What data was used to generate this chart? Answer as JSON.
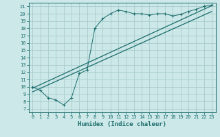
{
  "title": "",
  "xlabel": "Humidex (Indice chaleur)",
  "ylabel": "",
  "background_color": "#cce8e8",
  "grid_color": "#aacccc",
  "line_color": "#1a6b6b",
  "xlim": [
    -0.5,
    23.5
  ],
  "ylim": [
    6.5,
    21.5
  ],
  "xticks": [
    0,
    1,
    2,
    3,
    4,
    5,
    6,
    7,
    8,
    9,
    10,
    11,
    12,
    13,
    14,
    15,
    16,
    17,
    18,
    19,
    20,
    21,
    22,
    23
  ],
  "yticks": [
    7,
    8,
    9,
    10,
    11,
    12,
    13,
    14,
    15,
    16,
    17,
    18,
    19,
    20,
    21
  ],
  "series1_x": [
    0,
    1,
    2,
    3,
    4,
    5,
    6,
    7,
    8,
    9,
    10,
    11,
    12,
    13,
    14,
    15,
    16,
    17,
    18,
    19,
    20,
    21,
    22,
    23
  ],
  "series1_y": [
    10.0,
    9.5,
    8.5,
    8.2,
    7.5,
    8.5,
    11.8,
    12.3,
    18.0,
    19.3,
    20.0,
    20.5,
    20.3,
    20.0,
    20.0,
    19.8,
    20.0,
    20.0,
    19.7,
    19.9,
    20.3,
    20.6,
    21.0,
    21.2
  ],
  "series2_x": [
    0,
    23
  ],
  "series2_y": [
    9.8,
    21.1
  ],
  "series3_x": [
    0,
    23
  ],
  "series3_y": [
    9.3,
    20.3
  ],
  "xlabel_fontsize": 6.5,
  "tick_fontsize": 5.0
}
